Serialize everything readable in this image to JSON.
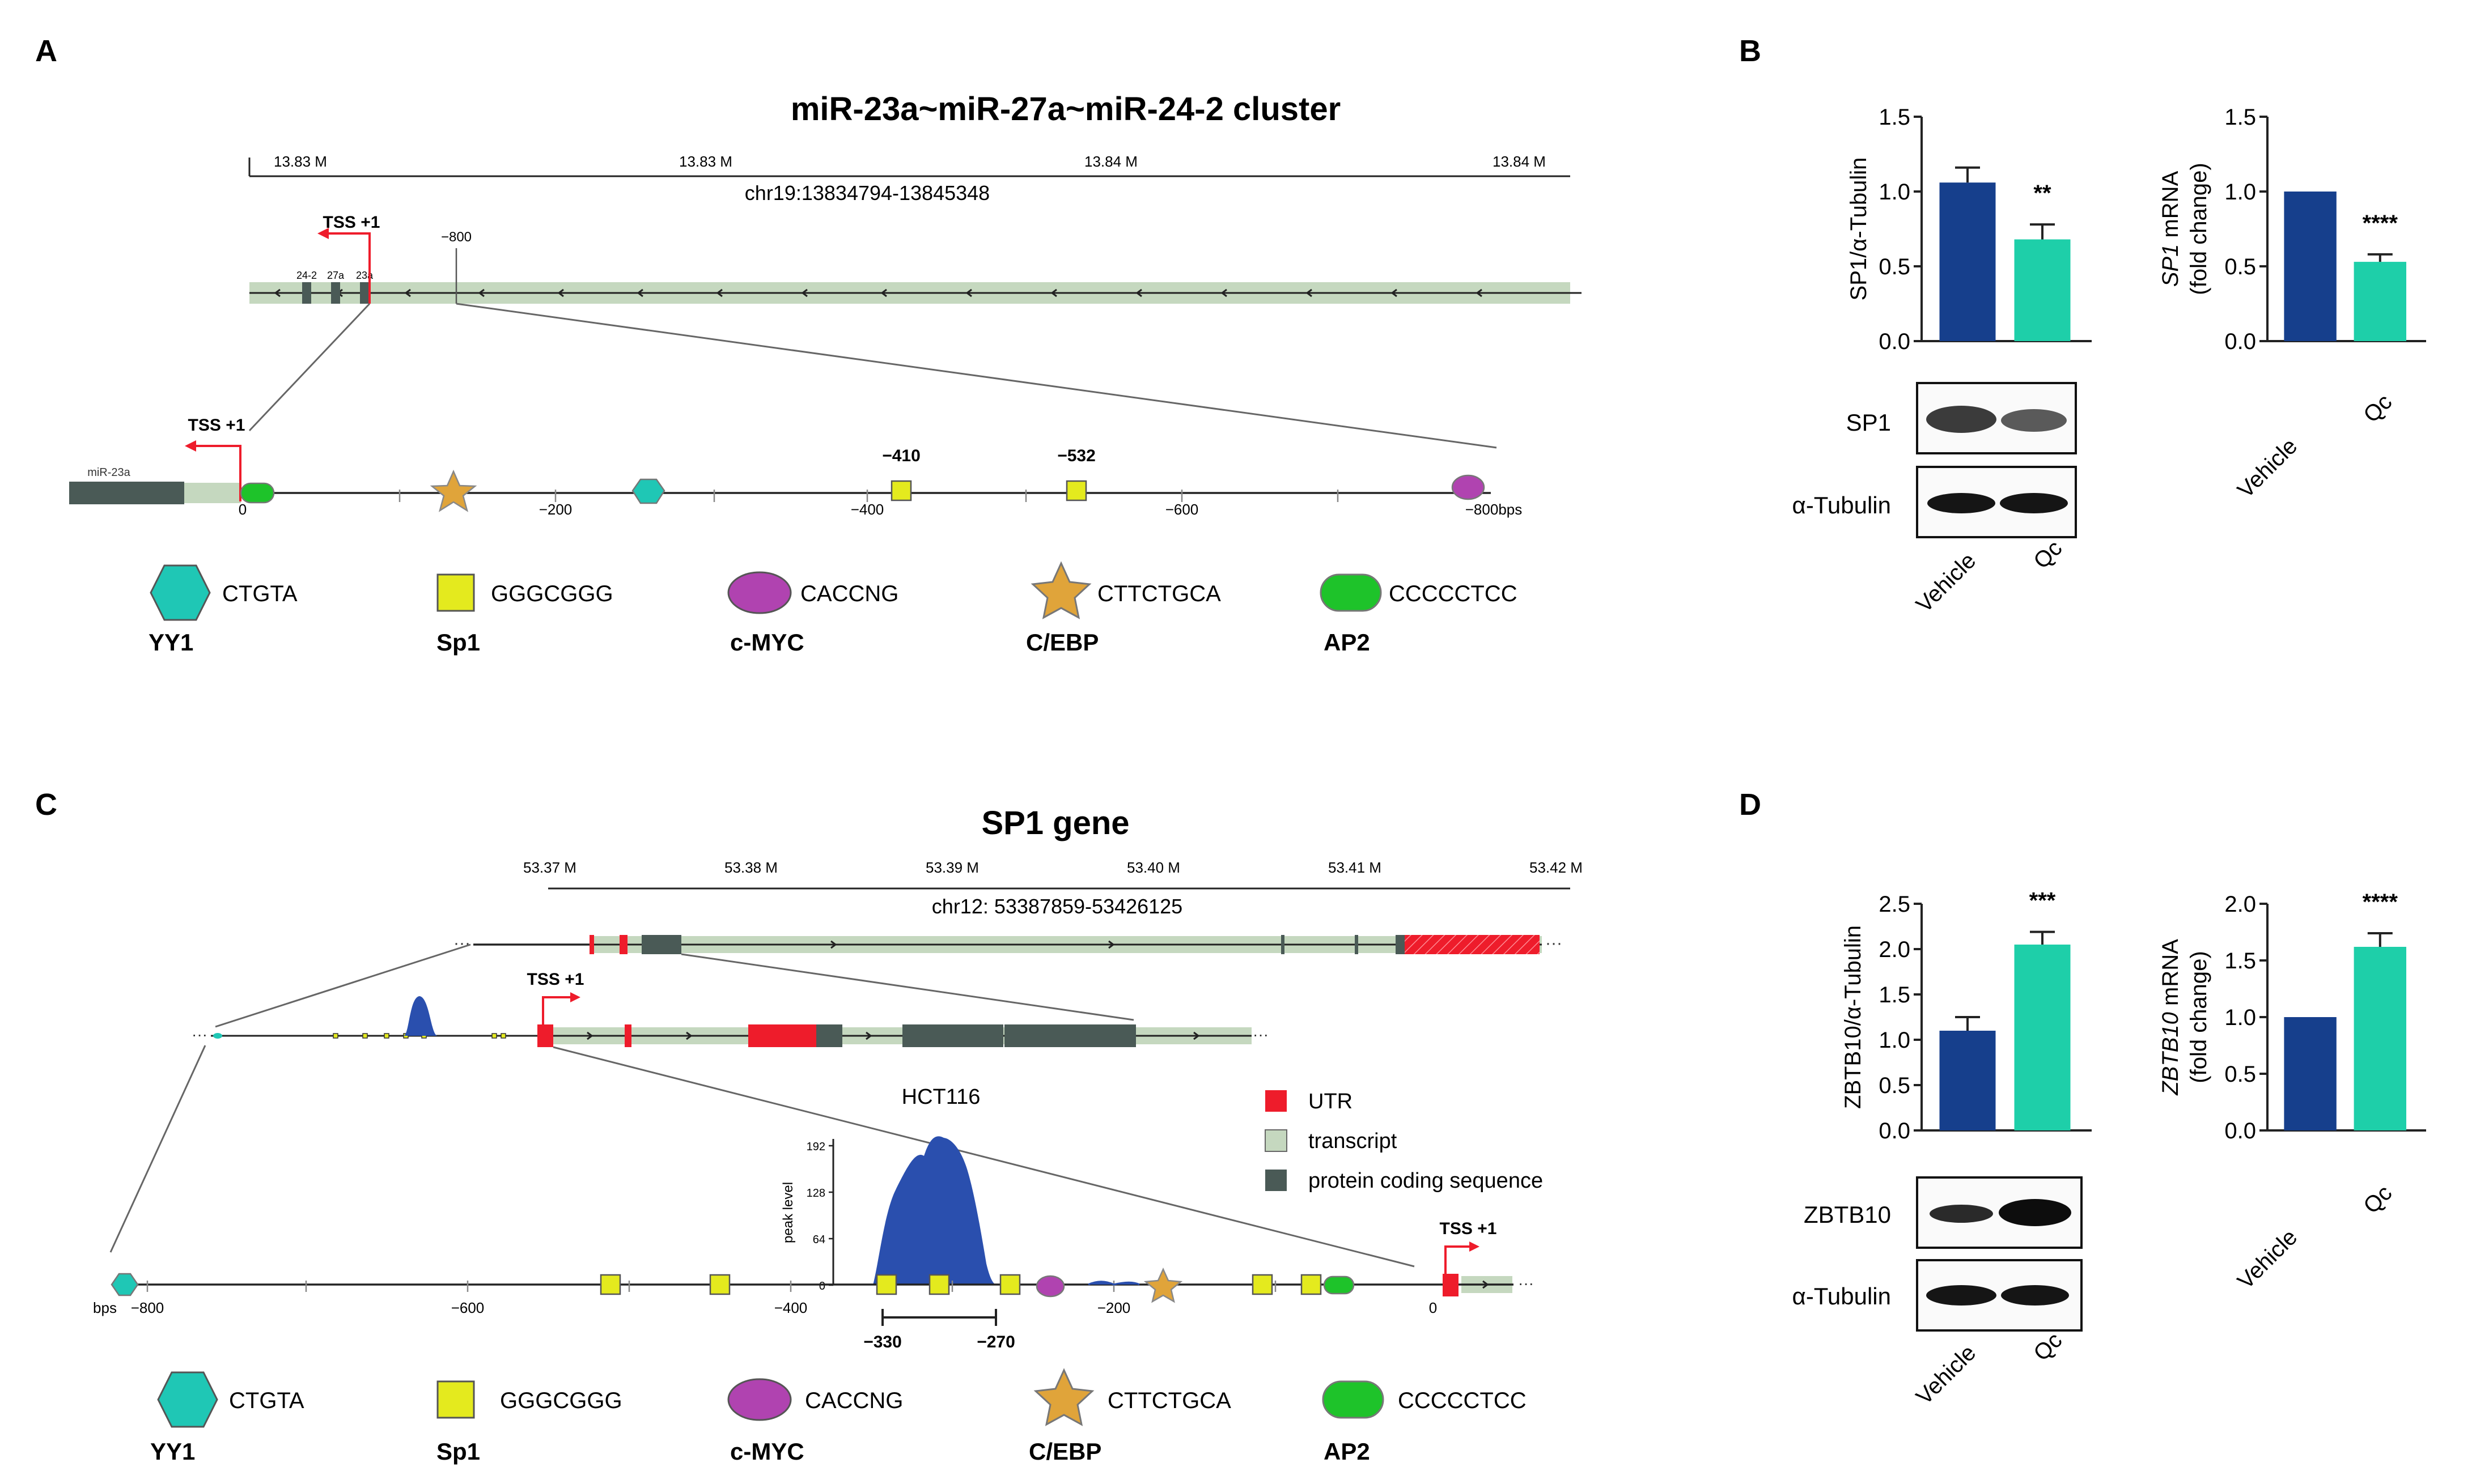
{
  "panels": {
    "a": "A",
    "b": "B",
    "c": "C",
    "d": "D"
  },
  "panel_a": {
    "title": "miR-23a~miR-27a~miR-24-2 cluster",
    "ruler_ticks": [
      "13.83 M",
      "13.83 M",
      "13.84 M",
      "13.84 M"
    ],
    "locus": "chr19:13834794-13845348",
    "tss": "TSS +1",
    "tick_800": "−800",
    "mirs": [
      "24-2",
      "27a",
      "23a"
    ],
    "mir_label": "miR-23a",
    "site_labels": [
      "−410",
      "−532"
    ],
    "axis_labels": [
      "0",
      "−200",
      "−400",
      "−600",
      "−800bps"
    ]
  },
  "panel_c": {
    "title": "SP1 gene",
    "ruler_ticks": [
      "53.37 M",
      "53.38 M",
      "53.39 M",
      "53.40 M",
      "53.41 M",
      "53.42 M"
    ],
    "locus": "chr12: 53387859-53426125",
    "tss": "TSS +1",
    "cell_line": "HCT116",
    "legend": [
      "UTR",
      "transcript",
      "protein coding sequence"
    ],
    "peak_ylabel": "peak level",
    "peak_ticks": [
      "192",
      "128",
      "64",
      "0"
    ],
    "axis_labels": [
      "bps",
      "−800",
      "−600",
      "−400",
      "−200",
      "0"
    ],
    "peak_range": [
      "−330",
      "−270"
    ]
  },
  "tf_legend": [
    {
      "name": "YY1",
      "motif": "CTGTA"
    },
    {
      "name": "Sp1",
      "motif": "GGGCGGG"
    },
    {
      "name": "c-MYC",
      "motif": "CACCNG"
    },
    {
      "name": "C/EBP",
      "motif": "CTTCTGCA"
    },
    {
      "name": "AP2",
      "motif": "CCCCCTCC"
    }
  ],
  "western": {
    "b_bands": [
      "SP1",
      "α-Tubulin"
    ],
    "d_bands": [
      "ZBTB10",
      "α-Tubulin"
    ],
    "lanes": [
      "Vehicle",
      "Qc"
    ]
  },
  "colors": {
    "vehicle": "#163f8c",
    "qc": "#1ecfa9",
    "transcript": "#c5d8bf",
    "cds": "#4a5a56",
    "utr": "#ee1c2b",
    "yy1": "#1fc7b5",
    "sp1": "#e4ea1e",
    "cmyc": "#b043b0",
    "cebp": "#e0a43a",
    "ap2": "#1ec32a",
    "peak": "#2a4fae"
  },
  "chart_data": [
    {
      "id": "b1",
      "type": "bar",
      "ylabel": "SP1/α-Tubulin",
      "ylim": [
        0,
        1.5
      ],
      "yticks": [
        "0.0",
        "0.5",
        "1.0",
        "1.5"
      ],
      "categories": [
        "Vehicle",
        "Qc"
      ],
      "values": [
        1.06,
        0.68
      ],
      "errors": [
        0.1,
        0.1
      ],
      "sig": "**"
    },
    {
      "id": "b2",
      "type": "bar",
      "ylabel_italic": "SP1",
      "ylabel_rest": " mRNA",
      "ylabel2": "(fold change)",
      "ylim": [
        0,
        1.5
      ],
      "yticks": [
        "0.0",
        "0.5",
        "1.0",
        "1.5"
      ],
      "categories": [
        "Vehicle",
        "Qc"
      ],
      "values": [
        1.0,
        0.53
      ],
      "errors": [
        0,
        0.05
      ],
      "sig": "****"
    },
    {
      "id": "d1",
      "type": "bar",
      "ylabel": "ZBTB10/α-Tubulin",
      "ylim": [
        0,
        2.5
      ],
      "yticks": [
        "0.0",
        "0.5",
        "1.0",
        "1.5",
        "2.0",
        "2.5"
      ],
      "categories": [
        "Vehicle",
        "Qc"
      ],
      "values": [
        1.1,
        2.05
      ],
      "errors": [
        0.15,
        0.14
      ],
      "sig": "***"
    },
    {
      "id": "d2",
      "type": "bar",
      "ylabel_italic": "ZBTB10",
      "ylabel_rest": " mRNA",
      "ylabel2": "(fold change)",
      "ylim": [
        0,
        2.0
      ],
      "yticks": [
        "0.0",
        "0.5",
        "1.0",
        "1.5",
        "2.0"
      ],
      "categories": [
        "Vehicle",
        "Qc"
      ],
      "values": [
        1.0,
        1.62
      ],
      "errors": [
        0,
        0.12
      ],
      "sig": "****"
    }
  ]
}
